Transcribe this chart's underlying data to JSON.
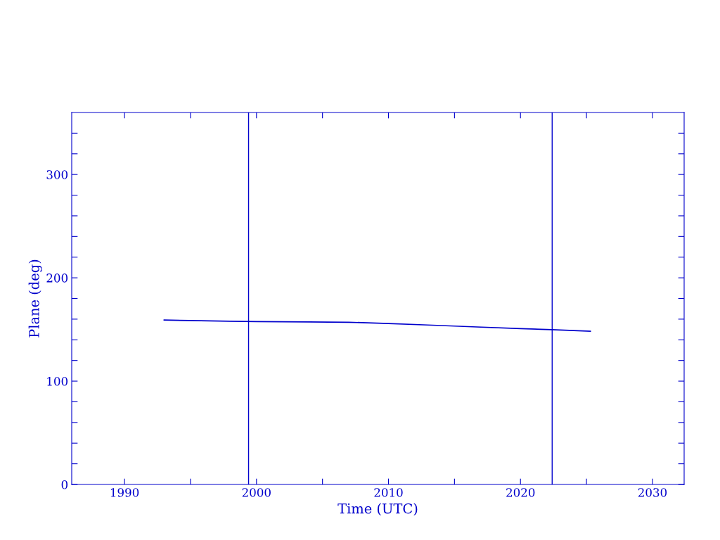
{
  "chart_data": {
    "type": "line",
    "xlabel": "Time (UTC)",
    "ylabel": "Plane (deg)",
    "x": [
      1993.0,
      1995.0,
      1998.0,
      2000.0,
      2004.0,
      2007.0,
      2010.0,
      2013.0,
      2016.0,
      2020.0,
      2022.4,
      2025.3
    ],
    "series": [
      {
        "color": "#0000cc",
        "values": [
          159.2,
          158.6,
          158.0,
          157.6,
          157.3,
          157.0,
          155.8,
          154.3,
          152.8,
          150.8,
          149.8,
          148.3
        ]
      }
    ],
    "xlim": [
      1986.0,
      2032.4
    ],
    "ylim": [
      0,
      360
    ],
    "xticks": [
      1990,
      {
        "value": 1995,
        "label": null
      },
      2000,
      {
        "value": 2005,
        "label": null
      },
      2010,
      {
        "value": 2015,
        "label": null
      },
      2020,
      {
        "value": 2025,
        "label": null
      },
      2030
    ],
    "yticks": [
      0,
      {
        "value": 20,
        "label": null
      },
      {
        "value": 40,
        "label": null
      },
      {
        "value": 60,
        "label": null
      },
      {
        "value": 80,
        "label": null
      },
      100,
      {
        "value": 120,
        "label": null
      },
      {
        "value": 140,
        "label": null
      },
      {
        "value": 160,
        "label": null
      },
      {
        "value": 180,
        "label": null
      },
      200,
      {
        "value": 220,
        "label": null
      },
      {
        "value": 240,
        "label": null
      },
      {
        "value": 260,
        "label": null
      },
      {
        "value": 280,
        "label": null
      },
      300,
      {
        "value": 320,
        "label": null
      },
      {
        "value": 340,
        "label": null
      }
    ],
    "ref_lines": [
      {
        "axis": "x",
        "value": 1999.4,
        "color": "#0000cc"
      },
      {
        "axis": "x",
        "value": 2022.4,
        "color": "#0000cc"
      }
    ],
    "grid": false,
    "legend": false,
    "marker": "none",
    "line_style": "solid"
  }
}
